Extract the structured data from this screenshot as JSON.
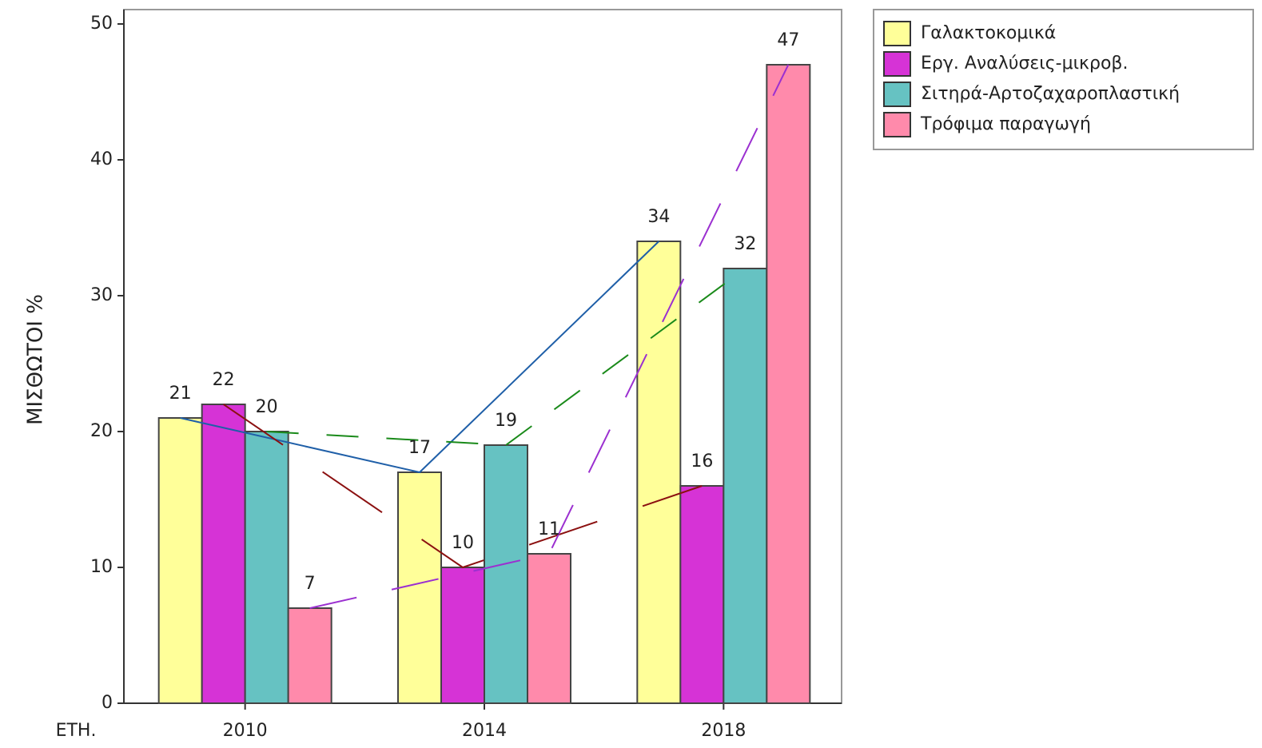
{
  "chart_data": {
    "type": "bar",
    "ylabel": "ΜΙΣΘΩΤΟΙ %",
    "xlabel": "ΕΤΗ.",
    "categories": [
      "2010",
      "2014",
      "2018"
    ],
    "series": [
      {
        "name": "Γαλακτοκομικά",
        "color": "#ffff99",
        "line_color": "#1f5fa8",
        "values": [
          21,
          17,
          34
        ]
      },
      {
        "name": "Εργ. Αναλύσεις-μικροβ.",
        "color": "#d633d6",
        "line_color": "#8b1010",
        "values": [
          22,
          10,
          16
        ]
      },
      {
        "name": "Σιτηρά-Αρτοζαχαροπλαστική",
        "color": "#66c2c2",
        "line_color": "#1a8a1a",
        "values": [
          20,
          19,
          32
        ]
      },
      {
        "name": "Τρόφιμα παραγωγή",
        "color": "#ff8aab",
        "line_color": "#9b30d0",
        "values": [
          7,
          11,
          47
        ]
      }
    ],
    "ylim": [
      0,
      50
    ],
    "yticks": [
      0,
      10,
      20,
      30,
      40,
      50
    ],
    "legend": "right"
  }
}
